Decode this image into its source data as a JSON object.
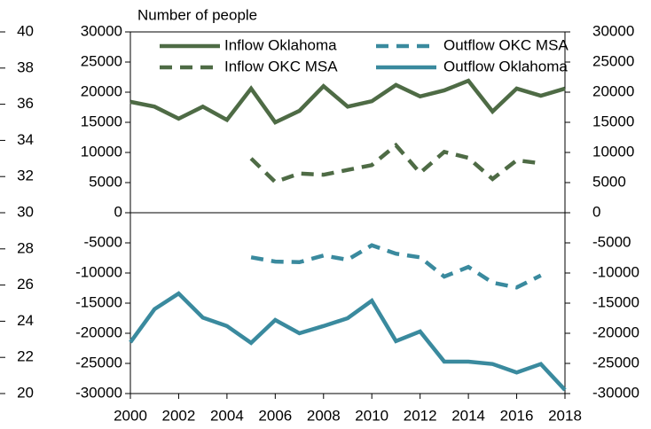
{
  "chart_data": {
    "type": "line",
    "title": "Number of people",
    "x": [
      2000,
      2001,
      2002,
      2003,
      2004,
      2005,
      2006,
      2007,
      2008,
      2009,
      2010,
      2011,
      2012,
      2013,
      2014,
      2015,
      2016,
      2017,
      2018
    ],
    "series": [
      {
        "name": "Inflow Oklahoma",
        "color": "#4e6b45",
        "dashed": false,
        "values": [
          18400,
          17600,
          15600,
          17600,
          15400,
          20600,
          15000,
          16900,
          21000,
          17600,
          18500,
          21200,
          19300,
          20300,
          21900,
          16800,
          20600,
          19400,
          20600
        ]
      },
      {
        "name": "Inflow OKC MSA",
        "color": "#4e6b45",
        "dashed": true,
        "values": [
          null,
          null,
          null,
          null,
          null,
          9000,
          5100,
          6500,
          6300,
          7100,
          7900,
          11200,
          6600,
          10100,
          9100,
          5600,
          8700,
          8200,
          null
        ]
      },
      {
        "name": "Outflow OKC MSA",
        "color": "#3a8a9e",
        "dashed": true,
        "values": [
          null,
          null,
          null,
          null,
          null,
          -7400,
          -8100,
          -8200,
          -7100,
          -7800,
          -5400,
          -6800,
          -7400,
          -10600,
          -9000,
          -11600,
          -12400,
          -10400,
          null
        ]
      },
      {
        "name": "Outflow Oklahoma",
        "color": "#3a8a9e",
        "dashed": false,
        "values": [
          -21500,
          -16000,
          -13400,
          -17400,
          -18800,
          -21600,
          -17800,
          -20000,
          -18800,
          -17500,
          -14600,
          -21300,
          -19700,
          -24700,
          -24700,
          -25100,
          -26500,
          -25100,
          -29400
        ]
      }
    ],
    "xlim": [
      2000,
      2018
    ],
    "xticks": [
      2000,
      2002,
      2004,
      2006,
      2008,
      2010,
      2012,
      2014,
      2016,
      2018
    ],
    "ylim": [
      -30000,
      30000
    ],
    "yticks": [
      -30000,
      -25000,
      -20000,
      -15000,
      -10000,
      -5000,
      0,
      5000,
      10000,
      15000,
      20000,
      25000,
      30000
    ],
    "y2lim": [
      -30000,
      30000
    ],
    "y2ticks": [
      -30000,
      -25000,
      -20000,
      -15000,
      -10000,
      -5000,
      0,
      5000,
      10000,
      15000,
      20000,
      25000,
      30000
    ],
    "y3lim": [
      20,
      40
    ],
    "y3ticks": [
      20,
      22,
      24,
      26,
      28,
      30,
      32,
      34,
      36,
      38,
      40
    ],
    "legend": "top"
  }
}
